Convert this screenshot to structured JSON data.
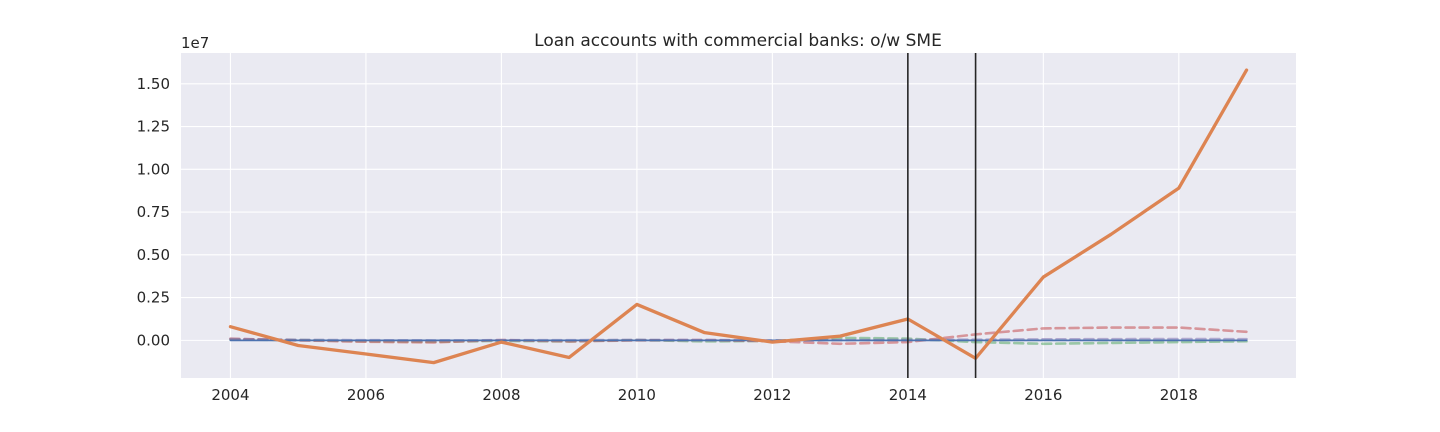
{
  "chart_data": {
    "type": "line",
    "title": "Loan accounts with commercial banks: o/w SME",
    "xlabel": "",
    "ylabel": "",
    "y_offset_label": "1e7",
    "xlim": [
      2003.27,
      2019.73
    ],
    "ylim": [
      -2200000,
      16800000
    ],
    "x_ticks": [
      2004,
      2006,
      2008,
      2010,
      2012,
      2014,
      2016,
      2018
    ],
    "x_tick_labels": [
      "2004",
      "2006",
      "2008",
      "2010",
      "2012",
      "2014",
      "2016",
      "2018"
    ],
    "y_ticks": [
      0,
      2500000,
      5000000,
      7500000,
      10000000,
      12500000,
      15000000
    ],
    "y_tick_labels": [
      "0.00",
      "0.25",
      "0.50",
      "0.75",
      "1.00",
      "1.25",
      "1.50"
    ],
    "grid": true,
    "vertical_lines": [
      2014,
      2015
    ],
    "x": [
      2004,
      2005,
      2006,
      2007,
      2008,
      2009,
      2010,
      2011,
      2012,
      2013,
      2014,
      2015,
      2016,
      2017,
      2018,
      2019
    ],
    "series": [
      {
        "color": "#4c72b0",
        "style": "solid",
        "values": [
          0,
          0,
          0,
          0,
          0,
          0,
          0,
          0,
          0,
          0,
          0,
          0,
          0,
          0,
          0,
          0
        ]
      },
      {
        "color": "#55a868",
        "style": "dashed",
        "values": [
          50000,
          20000,
          -50000,
          -80000,
          -30000,
          -60000,
          20000,
          -60000,
          -30000,
          150000,
          100000,
          -100000,
          -200000,
          -150000,
          -100000,
          -50000
        ]
      },
      {
        "color": "#c44e52",
        "style": "dashed",
        "values": [
          100000,
          0,
          -80000,
          -120000,
          20000,
          -60000,
          0,
          20000,
          -50000,
          -200000,
          -100000,
          350000,
          700000,
          750000,
          750000,
          500000
        ]
      },
      {
        "color": "#8172b2",
        "style": "dashed",
        "values": [
          80000,
          30000,
          10000,
          0,
          10000,
          10000,
          30000,
          20000,
          0,
          10000,
          30000,
          40000,
          60000,
          70000,
          80000,
          70000
        ]
      },
      {
        "color": "#dd8452",
        "style": "solid",
        "values": [
          800000,
          -300000,
          -800000,
          -1300000,
          -100000,
          -1000000,
          2100000,
          450000,
          -100000,
          250000,
          1250000,
          -1050000,
          3700000,
          6200000,
          8900000,
          15800000
        ]
      }
    ]
  }
}
